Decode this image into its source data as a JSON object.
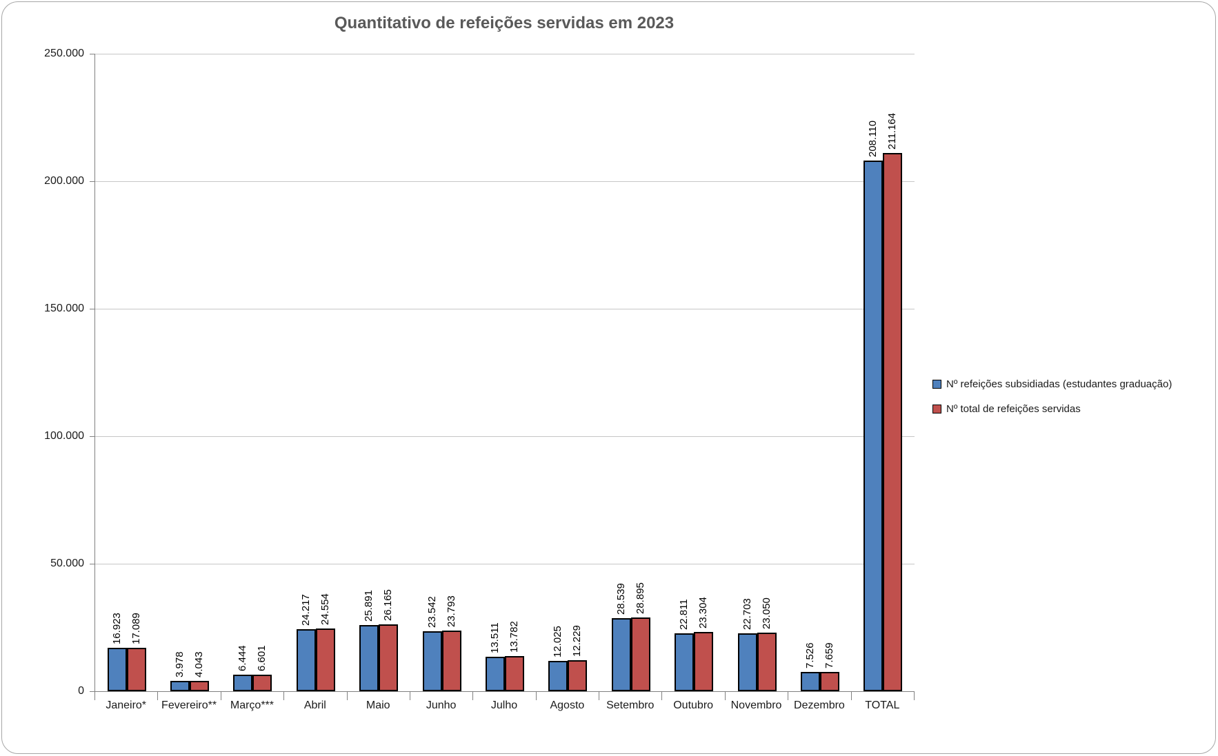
{
  "chart_data": {
    "type": "bar",
    "title": "Quantitativo de refeições servidas em 2023",
    "categories": [
      "Janeiro*",
      "Fevereiro**",
      "Março***",
      "Abril",
      "Maio",
      "Junho",
      "Julho",
      "Agosto",
      "Setembro",
      "Outubro",
      "Novembro",
      "Dezembro",
      "TOTAL"
    ],
    "series": [
      {
        "name": "Nº refeições subsidiadas (estudantes graduação)",
        "color": "#4F81BD",
        "values": [
          16923,
          3978,
          6444,
          24217,
          25891,
          23542,
          13511,
          12025,
          28539,
          22811,
          22703,
          7526,
          208110
        ],
        "labels": [
          "16.923",
          "3.978",
          "6.444",
          "24.217",
          "25.891",
          "23.542",
          "13.511",
          "12.025",
          "28.539",
          "22.811",
          "22.703",
          "7.526",
          "208.110"
        ]
      },
      {
        "name": "Nº total de refeições servidas",
        "color": "#C0504D",
        "values": [
          17089,
          4043,
          6601,
          24554,
          26165,
          23793,
          13782,
          12229,
          28895,
          23304,
          23050,
          7659,
          211164
        ],
        "labels": [
          "17.089",
          "4.043",
          "6.601",
          "24.554",
          "26.165",
          "23.793",
          "13.782",
          "12.229",
          "28.895",
          "23.304",
          "23.050",
          "7.659",
          "211.164"
        ]
      }
    ],
    "ylim": [
      0,
      250000
    ],
    "yticks": [
      {
        "value": 0,
        "label": "0"
      },
      {
        "value": 50000,
        "label": "50.000"
      },
      {
        "value": 100000,
        "label": "100.000"
      },
      {
        "value": 150000,
        "label": "150.000"
      },
      {
        "value": 200000,
        "label": "200.000"
      },
      {
        "value": 250000,
        "label": "250.000"
      }
    ],
    "grid": true,
    "legend_position": "right",
    "data_labels_rotation": -90
  },
  "colors": {
    "series_blue": "#4F81BD",
    "series_red": "#C0504D",
    "bar_border": "#000000",
    "title_text": "#595959",
    "axis_line": "#808080",
    "gridline": "#C6C6C6",
    "frame_border": "#A6A6A6"
  }
}
